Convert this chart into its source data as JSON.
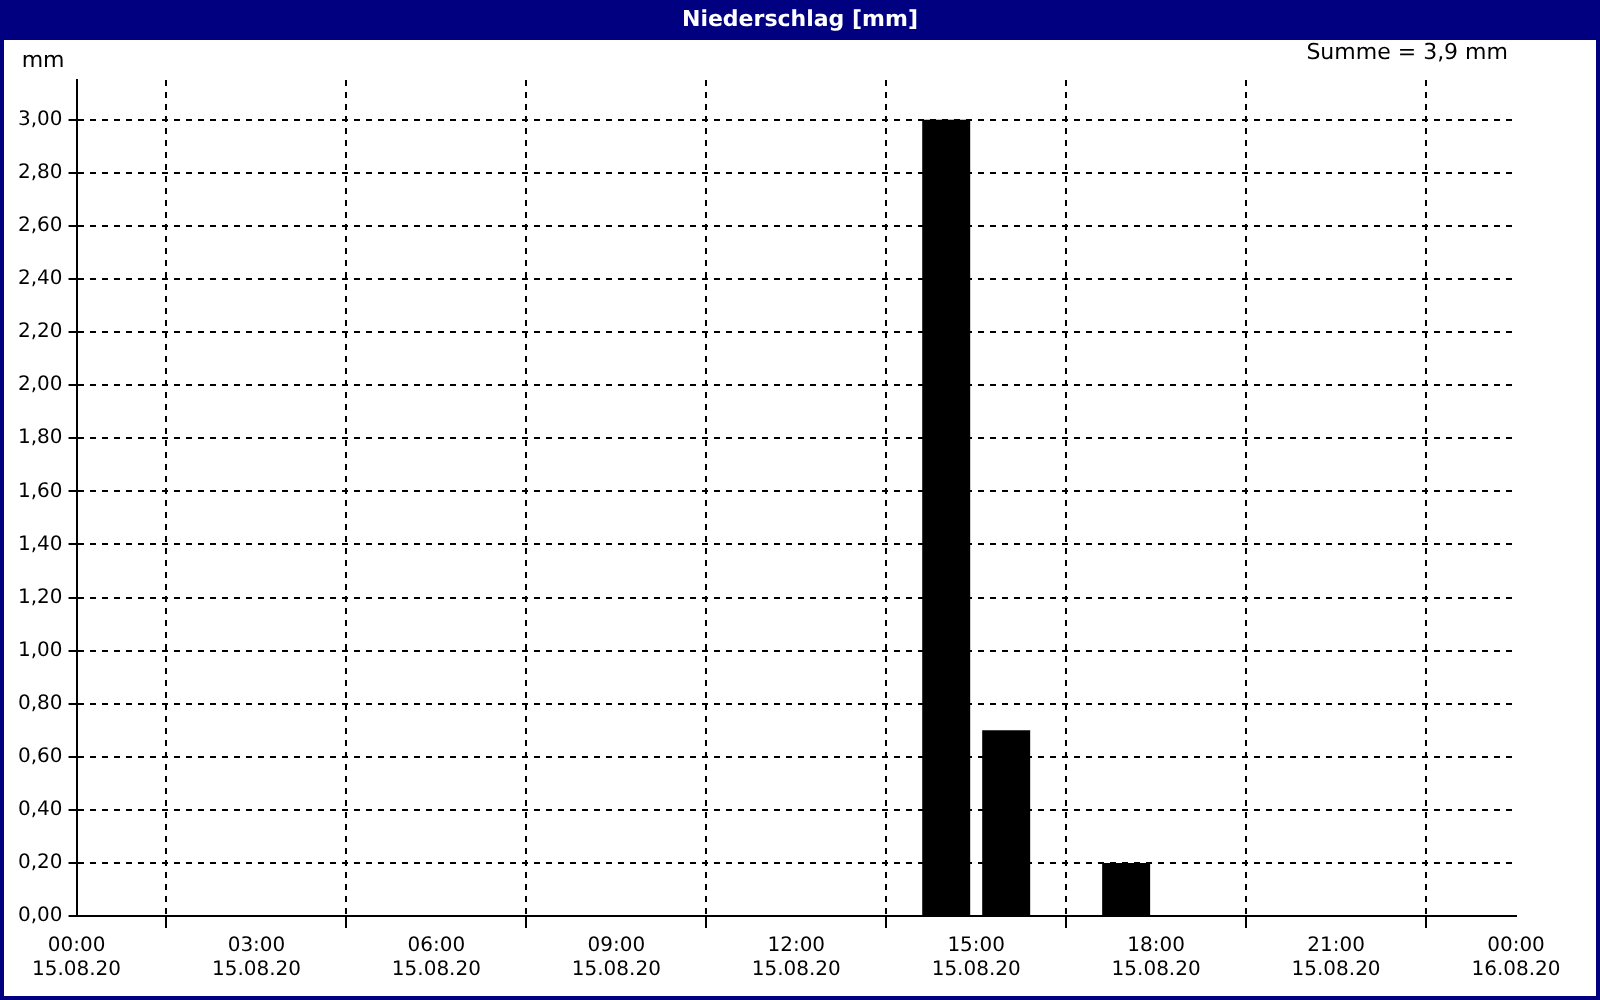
{
  "chart_data": {
    "type": "bar",
    "title": "Niederschlag [mm]",
    "ylabel": "mm",
    "annotations": [
      "Summe = 3,9 mm"
    ],
    "x": [
      "--08-15T14:30",
      "--08-15T15:30",
      "--08-15T17:30"
    ],
    "series": [
      {
        "color": "#000000",
        "values": [
          3.0,
          0.7,
          0.2
        ]
      }
    ],
    "xlim": [
      "--08-15T00:00",
      "--08-16T00:00"
    ],
    "xticks": [
      {
        "value": "--08-15T00:00",
        "label": "00:00 15.08.20"
      },
      {
        "value": "--08-15T03:00",
        "label": "03:00 15.08.20"
      },
      {
        "value": "--08-15T06:00",
        "label": "06:00 15.08.20"
      },
      {
        "value": "--08-15T09:00",
        "label": "09:00 15.08.20"
      },
      {
        "value": "--08-15T12:00",
        "label": "12:00 15.08.20"
      },
      {
        "value": "--08-15T15:00",
        "label": "15:00 15.08.20"
      },
      {
        "value": "--08-15T18:00",
        "label": "18:00 15.08.20"
      },
      {
        "value": "--08-15T21:00",
        "label": "21:00 15.08.20"
      },
      {
        "value": "--08-16T00:00",
        "label": "00:00 16.08.20"
      }
    ],
    "ylim": [
      0,
      3.15
    ],
    "yticks": [
      {
        "value": 0,
        "label": "0,00"
      },
      {
        "value": 0.2,
        "label": "0,20"
      },
      {
        "value": 0.4,
        "label": "0,40"
      },
      {
        "value": 0.6,
        "label": "0,60"
      },
      {
        "value": 0.8,
        "label": "0,80"
      },
      {
        "value": 1,
        "label": "1,00"
      },
      {
        "value": 1.2,
        "label": "1,20"
      },
      {
        "value": 1.4,
        "label": "1,40"
      },
      {
        "value": 1.6,
        "label": "1,60"
      },
      {
        "value": 1.8,
        "label": "1,80"
      },
      {
        "value": 2,
        "label": "2,00"
      },
      {
        "value": 2.2,
        "label": "2,20"
      },
      {
        "value": 2.4,
        "label": "2,40"
      },
      {
        "value": 2.6,
        "label": "2,60"
      },
      {
        "value": 2.8,
        "label": "2,80"
      },
      {
        "value": 3,
        "label": "3,00"
      }
    ],
    "grid": true,
    "legend": false
  }
}
